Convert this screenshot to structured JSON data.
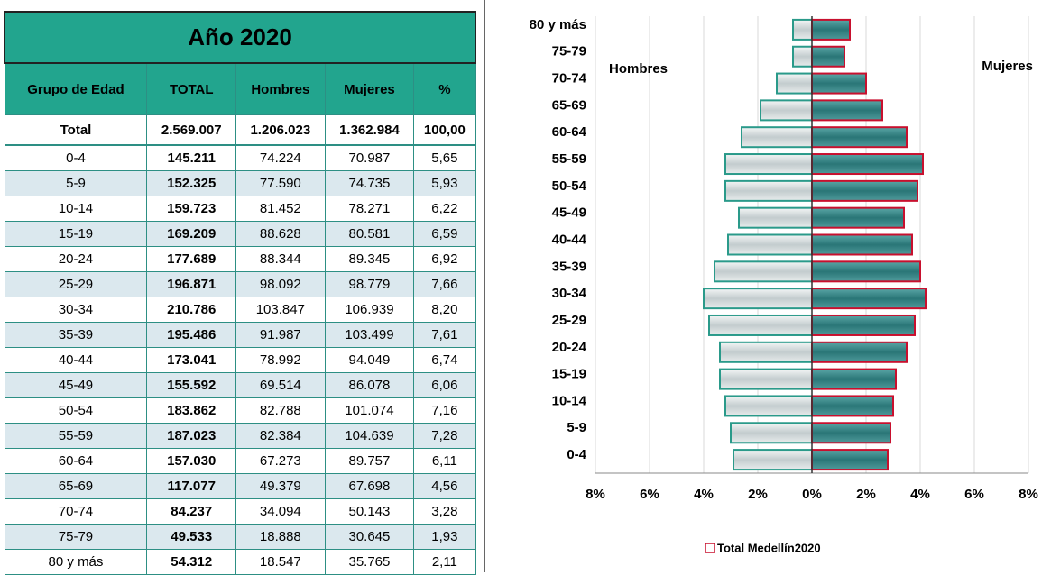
{
  "table": {
    "title": "Año 2020",
    "header": [
      "Grupo de Edad",
      "TOTAL",
      "Hombres",
      "Mujeres",
      "%"
    ],
    "rows": [
      [
        "Total",
        "2.569.007",
        "1.206.023",
        "1.362.984",
        "100,00"
      ],
      [
        "0-4",
        "145.211",
        "74.224",
        "70.987",
        "5,65"
      ],
      [
        "5-9",
        "152.325",
        "77.590",
        "74.735",
        "5,93"
      ],
      [
        "10-14",
        "159.723",
        "81.452",
        "78.271",
        "6,22"
      ],
      [
        "15-19",
        "169.209",
        "88.628",
        "80.581",
        "6,59"
      ],
      [
        "20-24",
        "177.689",
        "88.344",
        "89.345",
        "6,92"
      ],
      [
        "25-29",
        "196.871",
        "98.092",
        "98.779",
        "7,66"
      ],
      [
        "30-34",
        "210.786",
        "103.847",
        "106.939",
        "8,20"
      ],
      [
        "35-39",
        "195.486",
        "91.987",
        "103.499",
        "7,61"
      ],
      [
        "40-44",
        "173.041",
        "78.992",
        "94.049",
        "6,74"
      ],
      [
        "45-49",
        "155.592",
        "69.514",
        "86.078",
        "6,06"
      ],
      [
        "50-54",
        "183.862",
        "82.788",
        "101.074",
        "7,16"
      ],
      [
        "55-59",
        "187.023",
        "82.384",
        "104.639",
        "7,28"
      ],
      [
        "60-64",
        "157.030",
        "67.273",
        "89.757",
        "6,11"
      ],
      [
        "65-69",
        "117.077",
        "49.379",
        "67.698",
        "4,56"
      ],
      [
        "70-74",
        "84.237",
        "34.094",
        "50.143",
        "3,28"
      ],
      [
        "75-79",
        "49.533",
        "18.888",
        "30.645",
        "1,93"
      ],
      [
        "80 y más",
        "54.312",
        "18.547",
        "35.765",
        "2,11"
      ]
    ]
  },
  "chart_data": {
    "type": "pyramid",
    "categories": [
      "0-4",
      "5-9",
      "10-14",
      "15-19",
      "20-24",
      "25-29",
      "30-34",
      "35-39",
      "40-44",
      "45-49",
      "50-54",
      "55-59",
      "60-64",
      "65-69",
      "70-74",
      "75-79",
      "80 y más"
    ],
    "series": [
      {
        "name": "Hombres",
        "color": "#2a9a8a",
        "values": [
          -2.9,
          -3.0,
          -3.2,
          -3.4,
          -3.4,
          -3.8,
          -4.0,
          -3.6,
          -3.1,
          -2.7,
          -3.2,
          -3.2,
          -2.6,
          -1.9,
          -1.3,
          -0.7,
          -0.7
        ]
      },
      {
        "name": "Mujeres",
        "color": "#c8102e",
        "values": [
          2.8,
          2.9,
          3.0,
          3.1,
          3.5,
          3.8,
          4.2,
          4.0,
          3.7,
          3.4,
          3.9,
          4.1,
          3.5,
          2.6,
          2.0,
          1.2,
          1.4
        ]
      }
    ],
    "xlim": [
      -8,
      8
    ],
    "xticks": [
      {
        "value": -8,
        "label": "8%"
      },
      {
        "value": -6,
        "label": "6%"
      },
      {
        "value": -4,
        "label": "4%"
      },
      {
        "value": -2,
        "label": "2%"
      },
      {
        "value": 0,
        "label": "0%"
      },
      {
        "value": 2,
        "label": "2%"
      },
      {
        "value": 4,
        "label": "4%"
      },
      {
        "value": 6,
        "label": "6%"
      },
      {
        "value": 8,
        "label": "8%"
      }
    ],
    "legend": "Total Medellín2020",
    "grid": true
  }
}
